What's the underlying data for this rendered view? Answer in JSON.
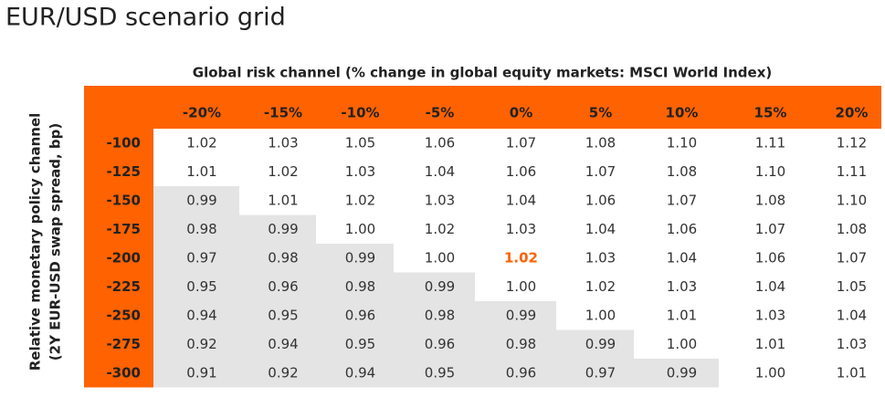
{
  "header": {
    "title": "EUR/USD scenario grid"
  },
  "table": {
    "column_axis_label": "Global risk channel (% change in global equity markets: MSCI World Index)",
    "row_axis_label_lines": [
      "Relative monetary policy channel",
      "(2Y EUR-USD swap spread, bp)"
    ],
    "header_color": "#ff6200",
    "shade_color": "#e4e4e4",
    "columns": [
      "-20%",
      "-15%",
      "-10%",
      "-5%",
      "0%",
      "5%",
      "10%",
      "15%",
      "20%"
    ],
    "rows": [
      {
        "label": "-100",
        "values": [
          "1.02",
          "1.03",
          "1.05",
          "1.06",
          "1.07",
          "1.08",
          "1.10",
          "1.11",
          "1.12"
        ],
        "shaded": [
          false,
          false,
          false,
          false,
          false,
          false,
          false,
          false,
          false
        ]
      },
      {
        "label": "-125",
        "values": [
          "1.01",
          "1.02",
          "1.03",
          "1.04",
          "1.06",
          "1.07",
          "1.08",
          "1.10",
          "1.11"
        ],
        "shaded": [
          false,
          false,
          false,
          false,
          false,
          false,
          false,
          false,
          false
        ]
      },
      {
        "label": "-150",
        "values": [
          "0.99",
          "1.01",
          "1.02",
          "1.03",
          "1.04",
          "1.06",
          "1.07",
          "1.08",
          "1.10"
        ],
        "shaded": [
          true,
          false,
          false,
          false,
          false,
          false,
          false,
          false,
          false
        ]
      },
      {
        "label": "-175",
        "values": [
          "0.98",
          "0.99",
          "1.00",
          "1.02",
          "1.03",
          "1.04",
          "1.06",
          "1.07",
          "1.08"
        ],
        "shaded": [
          true,
          true,
          false,
          false,
          false,
          false,
          false,
          false,
          false
        ]
      },
      {
        "label": "-200",
        "values": [
          "0.97",
          "0.98",
          "0.99",
          "1.00",
          "1.02",
          "1.03",
          "1.04",
          "1.06",
          "1.07"
        ],
        "shaded": [
          true,
          true,
          true,
          false,
          false,
          false,
          false,
          false,
          false
        ]
      },
      {
        "label": "-225",
        "values": [
          "0.95",
          "0.96",
          "0.98",
          "0.99",
          "1.00",
          "1.02",
          "1.03",
          "1.04",
          "1.05"
        ],
        "shaded": [
          true,
          true,
          true,
          true,
          false,
          false,
          false,
          false,
          false
        ]
      },
      {
        "label": "-250",
        "values": [
          "0.94",
          "0.95",
          "0.96",
          "0.98",
          "0.99",
          "1.00",
          "1.01",
          "1.03",
          "1.04"
        ],
        "shaded": [
          true,
          true,
          true,
          true,
          true,
          false,
          false,
          false,
          false
        ]
      },
      {
        "label": "-275",
        "values": [
          "0.92",
          "0.94",
          "0.95",
          "0.96",
          "0.98",
          "0.99",
          "1.00",
          "1.01",
          "1.03"
        ],
        "shaded": [
          true,
          true,
          true,
          true,
          true,
          true,
          false,
          false,
          false
        ]
      },
      {
        "label": "-300",
        "values": [
          "0.91",
          "0.92",
          "0.94",
          "0.95",
          "0.96",
          "0.97",
          "0.99",
          "1.00",
          "1.01"
        ],
        "shaded": [
          true,
          true,
          true,
          true,
          true,
          true,
          true,
          false,
          false
        ]
      }
    ],
    "highlight": {
      "row": 4,
      "column": 4,
      "color": "#ff6200"
    }
  }
}
